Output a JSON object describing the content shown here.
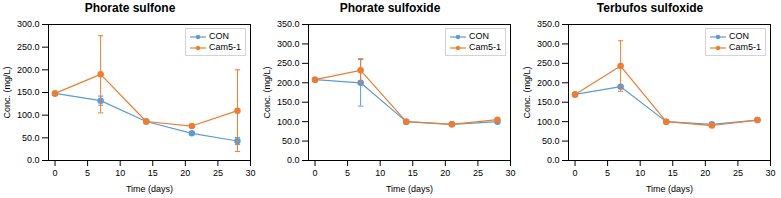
{
  "chart_data": [
    {
      "type": "line",
      "title": "Phorate sulfone",
      "xlabel": "Time (days)",
      "ylabel": "Conc. (mg/L)",
      "x": [
        0,
        7,
        14,
        21,
        28
      ],
      "xlim": [
        -1,
        30
      ],
      "xticks": [
        0,
        5,
        10,
        15,
        20,
        25,
        30
      ],
      "ylim": [
        0,
        300
      ],
      "yticks": [
        {
          "value": 0,
          "label": "0.0"
        },
        {
          "value": 50,
          "label": "50.0"
        },
        {
          "value": 100,
          "label": "100.0"
        },
        {
          "value": 150,
          "label": "150.0"
        },
        {
          "value": 200,
          "label": "200.0"
        },
        {
          "value": 250,
          "label": "250.0"
        },
        {
          "value": 300,
          "label": "300.0"
        }
      ],
      "grid": false,
      "legend": "upper right",
      "marker": "circle",
      "series": [
        {
          "name": "CON",
          "color": "#5B9BD5",
          "values": [
            148,
            132,
            86,
            60,
            43
          ],
          "yerr": [
            0,
            10,
            0,
            0,
            8
          ]
        },
        {
          "name": "Cam5-1",
          "color": "#ED7D31",
          "values": [
            148,
            190,
            86,
            76,
            110
          ],
          "yerr": [
            0,
            85,
            0,
            0,
            90
          ]
        }
      ]
    },
    {
      "type": "line",
      "title": "Phorate sulfoxide",
      "xlabel": "Time (days)",
      "ylabel": "Conc. (mg/L)",
      "x": [
        0,
        7,
        14,
        21,
        28
      ],
      "xlim": [
        -1,
        30
      ],
      "xticks": [
        0,
        5,
        10,
        15,
        20,
        25,
        30
      ],
      "ylim": [
        0,
        350
      ],
      "yticks": [
        {
          "value": 0,
          "label": "0.0"
        },
        {
          "value": 50,
          "label": "50.0"
        },
        {
          "value": 100,
          "label": "100.0"
        },
        {
          "value": 150,
          "label": "150.0"
        },
        {
          "value": 200,
          "label": "200.0"
        },
        {
          "value": 250,
          "label": "250.0"
        },
        {
          "value": 300,
          "label": "300.0"
        },
        {
          "value": 350,
          "label": "350.0"
        }
      ],
      "grid": false,
      "legend": "upper right",
      "marker": "circle",
      "series": [
        {
          "name": "CON",
          "color": "#5B9BD5",
          "values": [
            208,
            200,
            100,
            93,
            100
          ],
          "yerr": [
            0,
            60,
            0,
            0,
            0
          ]
        },
        {
          "name": "Cam5-1",
          "color": "#ED7D31",
          "values": [
            208,
            232,
            100,
            93,
            105
          ],
          "yerr": [
            0,
            30,
            0,
            0,
            0
          ]
        }
      ]
    },
    {
      "type": "line",
      "title": "Terbufos sulfoxide",
      "xlabel": "Time (days)",
      "ylabel": "Conc. (mg/L)",
      "x": [
        0,
        7,
        14,
        21,
        28
      ],
      "xlim": [
        -1,
        30
      ],
      "xticks": [
        0,
        5,
        10,
        15,
        20,
        25,
        30
      ],
      "ylim": [
        0,
        350
      ],
      "yticks": [
        {
          "value": 0,
          "label": "0.0"
        },
        {
          "value": 50,
          "label": "50.0"
        },
        {
          "value": 100,
          "label": "100.0"
        },
        {
          "value": 150,
          "label": "150.0"
        },
        {
          "value": 200,
          "label": "200.0"
        },
        {
          "value": 250,
          "label": "250.0"
        },
        {
          "value": 300,
          "label": "300.0"
        },
        {
          "value": 350,
          "label": "350.0"
        }
      ],
      "grid": false,
      "legend": "upper right",
      "marker": "circle",
      "series": [
        {
          "name": "CON",
          "color": "#5B9BD5",
          "values": [
            170,
            190,
            100,
            93,
            104
          ],
          "yerr": [
            0,
            0,
            0,
            0,
            0
          ]
        },
        {
          "name": "Cam5-1",
          "color": "#ED7D31",
          "values": [
            170,
            243,
            100,
            90,
            104
          ],
          "yerr": [
            0,
            65,
            0,
            0,
            0
          ]
        }
      ]
    }
  ]
}
